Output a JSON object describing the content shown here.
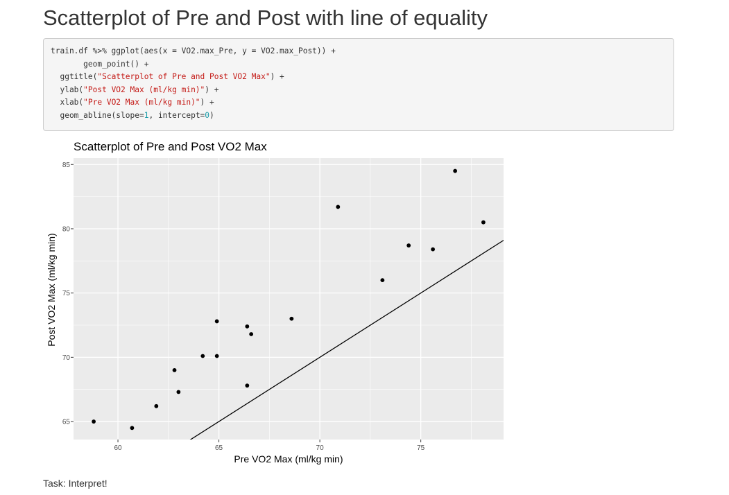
{
  "page": {
    "title": "Scatterplot of Pre and Post with line of equality",
    "task": "Task: Interpret!"
  },
  "code": {
    "lines": [
      [
        {
          "t": "train.df %>% ggplot(aes(x = VO2.max_Pre, y = VO2.max_Post)) +",
          "k": "plain"
        }
      ],
      [
        {
          "t": "       geom_point() +",
          "k": "plain"
        }
      ],
      [
        {
          "t": "  ggtitle(",
          "k": "plain"
        },
        {
          "t": "\"Scatterplot of Pre and Post VO2 Max\"",
          "k": "str"
        },
        {
          "t": ") +",
          "k": "plain"
        }
      ],
      [
        {
          "t": "  ylab(",
          "k": "plain"
        },
        {
          "t": "\"Post VO2 Max (ml/kg min)\"",
          "k": "str"
        },
        {
          "t": ") +",
          "k": "plain"
        }
      ],
      [
        {
          "t": "  xlab(",
          "k": "plain"
        },
        {
          "t": "\"Pre VO2 Max (ml/kg min)\"",
          "k": "str"
        },
        {
          "t": ") +",
          "k": "plain"
        }
      ],
      [
        {
          "t": "  geom_abline(slope=",
          "k": "plain"
        },
        {
          "t": "1",
          "k": "num"
        },
        {
          "t": ", intercept=",
          "k": "plain"
        },
        {
          "t": "0",
          "k": "num"
        },
        {
          "t": ")",
          "k": "plain"
        }
      ]
    ]
  },
  "chart_data": {
    "type": "scatter",
    "title": "Scatterplot of Pre and Post VO2 Max",
    "xlabel": "Pre VO2 Max (ml/kg min)",
    "ylabel": "Post VO2 Max (ml/kg min)",
    "xlim": [
      57.8,
      79.1
    ],
    "ylim": [
      63.6,
      85.5
    ],
    "xticks": [
      60,
      65,
      70,
      75
    ],
    "yticks": [
      65,
      70,
      75,
      80,
      85
    ],
    "grid": true,
    "legend": "none",
    "points": [
      {
        "x": 58.8,
        "y": 65.0
      },
      {
        "x": 60.7,
        "y": 64.5
      },
      {
        "x": 61.9,
        "y": 66.2
      },
      {
        "x": 62.8,
        "y": 69.0
      },
      {
        "x": 63.0,
        "y": 67.3
      },
      {
        "x": 64.2,
        "y": 70.1
      },
      {
        "x": 64.9,
        "y": 70.1
      },
      {
        "x": 64.9,
        "y": 72.8
      },
      {
        "x": 66.4,
        "y": 67.8
      },
      {
        "x": 66.4,
        "y": 72.4
      },
      {
        "x": 66.6,
        "y": 71.8
      },
      {
        "x": 68.6,
        "y": 73.0
      },
      {
        "x": 70.9,
        "y": 81.7
      },
      {
        "x": 73.1,
        "y": 76.0
      },
      {
        "x": 74.4,
        "y": 78.7
      },
      {
        "x": 75.6,
        "y": 78.4
      },
      {
        "x": 76.7,
        "y": 84.5
      },
      {
        "x": 78.1,
        "y": 80.5
      }
    ],
    "reference_line": {
      "slope": 1,
      "intercept": 0
    },
    "colors": {
      "panel": "#ebebeb",
      "grid_major": "#ffffff",
      "point": "#000000",
      "line": "#000000",
      "tick_text": "#4d4d4d"
    }
  }
}
